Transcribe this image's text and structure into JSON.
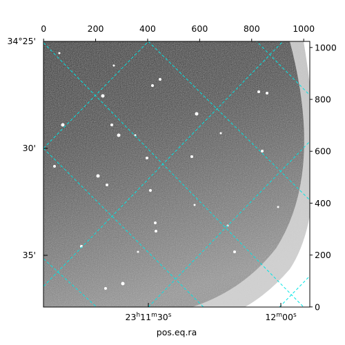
{
  "chart_data": {
    "type": "image",
    "xlim": [
      -0.5,
      1023.5
    ],
    "xticks": [
      0,
      200,
      400,
      600,
      800,
      1000
    ],
    "ylim": [
      -0.5,
      1023.5
    ],
    "yticks": [
      0,
      200,
      400,
      600,
      800,
      1000
    ],
    "dec_labels": [
      "34°25'",
      "30'",
      "35'"
    ],
    "ra_labels": [
      "23h11m30s",
      "12m00s"
    ],
    "xlabel": "pos.eq.ra",
    "grid_color": "#00e5e5"
  }
}
